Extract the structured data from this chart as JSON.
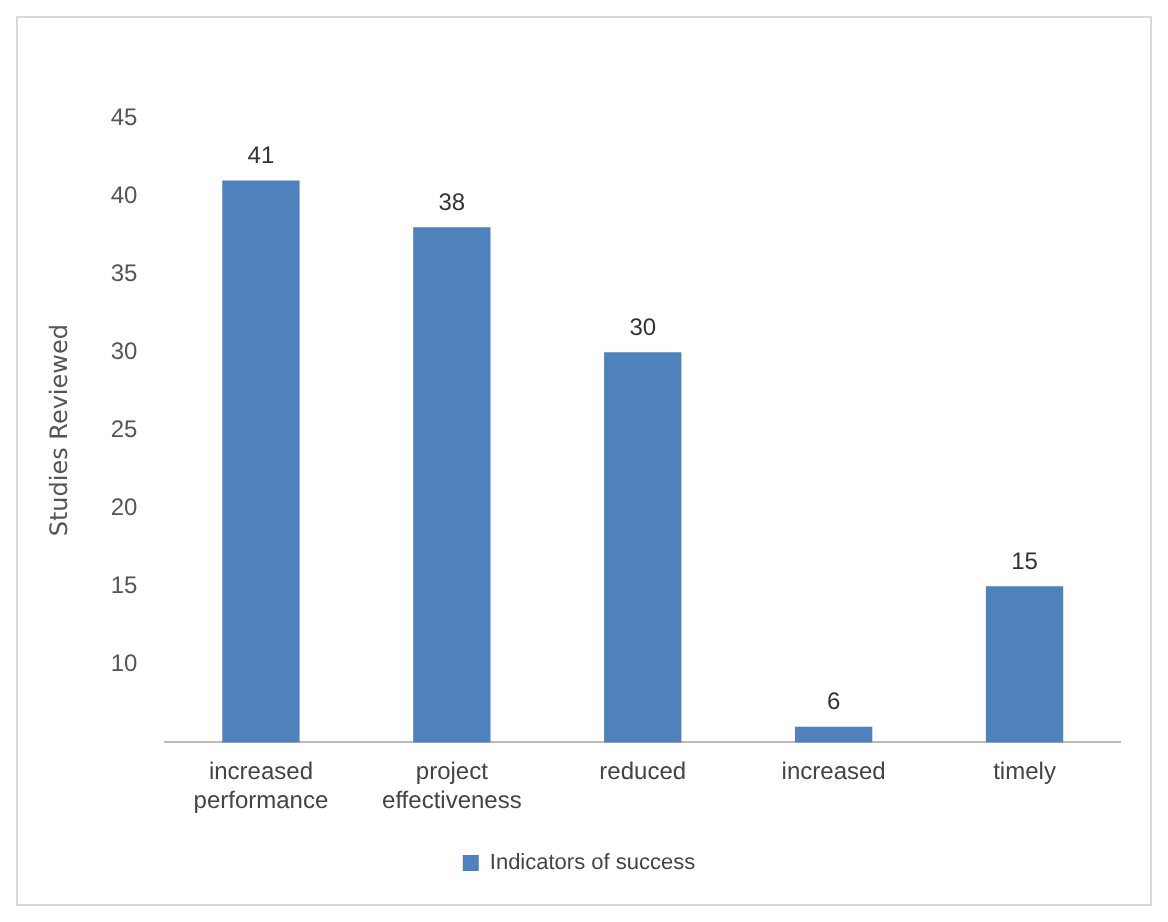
{
  "chart_data": {
    "type": "bar",
    "ylabel": "Studies Reviewed",
    "categories": [
      "increased performance",
      "project effectiveness",
      "reduced",
      "increased",
      "timely"
    ],
    "series": [
      {
        "name": "Indicators of success",
        "color": "#4f81bd",
        "values": [
          41,
          38,
          30,
          6,
          15
        ]
      }
    ],
    "ylim": [
      5,
      45
    ],
    "yticks": [
      10,
      15,
      20,
      25,
      30,
      35,
      40,
      45
    ],
    "grid": false,
    "legend": "bottom",
    "data_labels": true
  }
}
